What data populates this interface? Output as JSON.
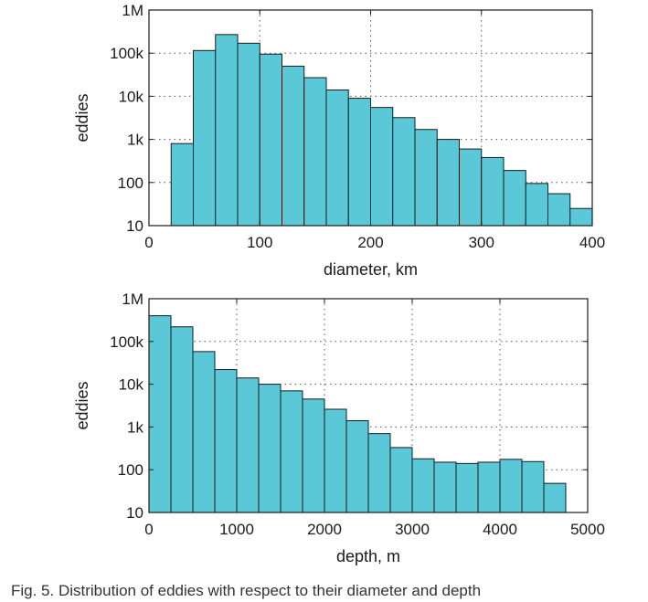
{
  "chart_data": [
    {
      "type": "bar",
      "xlabel": "diameter, km",
      "ylabel": "eddies",
      "yscale": "log",
      "xlim": [
        0,
        400
      ],
      "ylim": [
        10,
        1000000
      ],
      "x_ticks": [
        0,
        100,
        200,
        300,
        400
      ],
      "x_tick_labels": [
        "0",
        "100",
        "200",
        "300",
        "400"
      ],
      "y_ticks": [
        10,
        100,
        1000,
        10000,
        100000,
        1000000
      ],
      "y_tick_labels": [
        "10",
        "100",
        "1k",
        "10k",
        "100k",
        "1M"
      ],
      "grid": true,
      "bar_color": "#5bc8d8",
      "bin_width": 20,
      "bin_starts": [
        20,
        40,
        60,
        80,
        100,
        120,
        140,
        160,
        180,
        200,
        220,
        240,
        260,
        280,
        300,
        320,
        340,
        360,
        380
      ],
      "values": [
        800,
        115000,
        270000,
        170000,
        95000,
        50000,
        27000,
        14000,
        9000,
        5500,
        3200,
        1700,
        1000,
        600,
        380,
        190,
        95,
        55,
        25
      ]
    },
    {
      "type": "bar",
      "xlabel": "depth, m",
      "ylabel": "eddies",
      "yscale": "log",
      "xlim": [
        0,
        5000
      ],
      "ylim": [
        10,
        1000000
      ],
      "x_ticks": [
        0,
        1000,
        2000,
        3000,
        4000,
        5000
      ],
      "x_tick_labels": [
        "0",
        "1000",
        "2000",
        "3000",
        "4000",
        "5000"
      ],
      "y_ticks": [
        10,
        100,
        1000,
        10000,
        100000,
        1000000
      ],
      "y_tick_labels": [
        "10",
        "100",
        "1k",
        "10k",
        "100k",
        "1M"
      ],
      "grid": true,
      "bar_color": "#5bc8d8",
      "bin_width": 250,
      "bin_starts": [
        0,
        250,
        500,
        750,
        1000,
        1250,
        1500,
        1750,
        2000,
        2250,
        2500,
        2750,
        3000,
        3250,
        3500,
        3750,
        4000,
        4250,
        4500
      ],
      "values": [
        400000,
        220000,
        58000,
        22000,
        14000,
        10000,
        7000,
        4500,
        2600,
        1400,
        700,
        330,
        180,
        150,
        140,
        150,
        175,
        155,
        48
      ]
    }
  ],
  "caption": "Fig. 5. Distribution of eddies with respect to their diameter and depth"
}
